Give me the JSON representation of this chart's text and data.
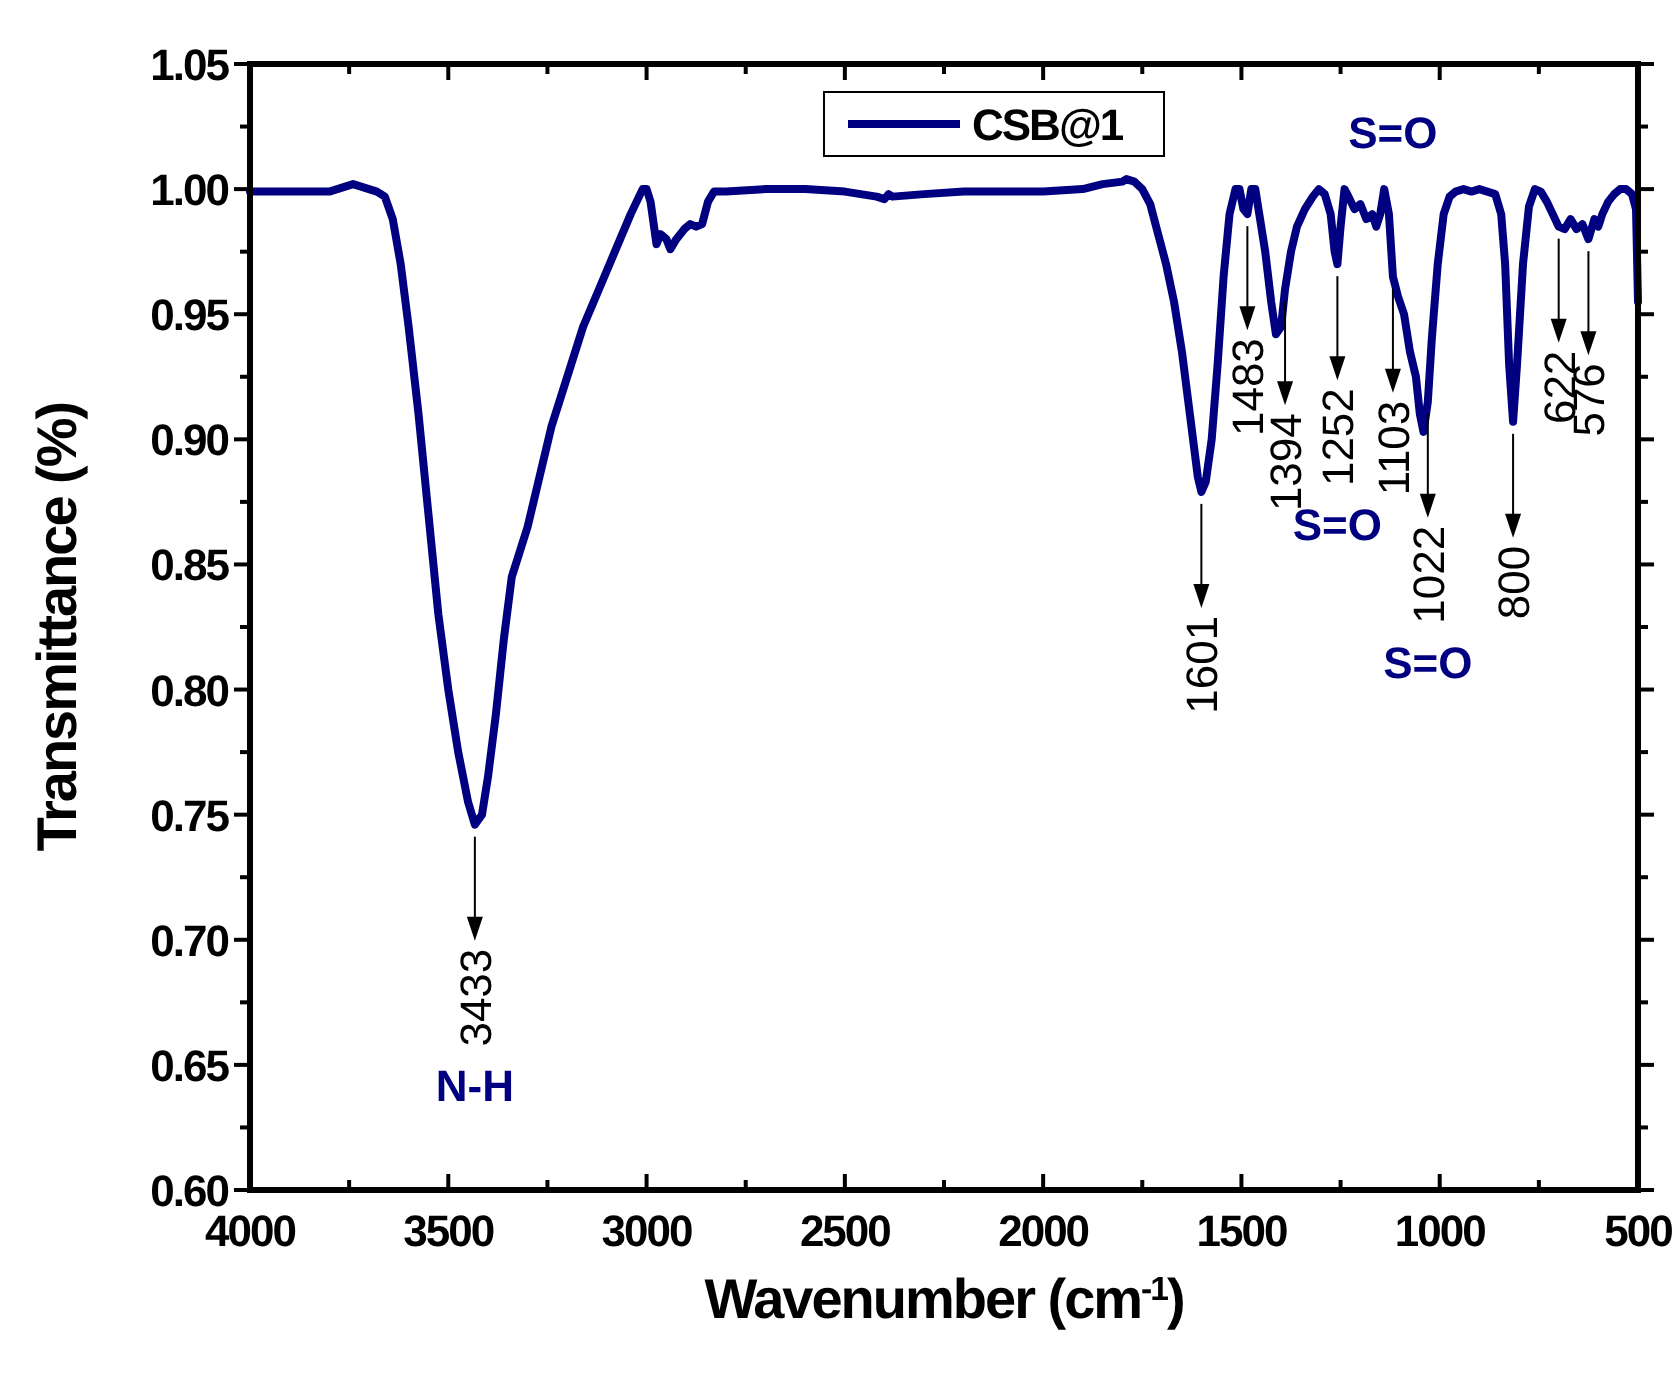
{
  "chart_data": {
    "type": "line",
    "xlabel": "Wavenumber (cm$^{-1}$)",
    "ylabel": "Transmittance (%)",
    "xlim": [
      4000,
      500
    ],
    "xticks": [
      4000,
      {
        "value": 3750,
        "label": null
      },
      3500,
      {
        "value": 3250,
        "label": null
      },
      3000,
      {
        "value": 2750,
        "label": null
      },
      2500,
      {
        "value": 2250,
        "label": null
      },
      2000,
      {
        "value": 1750,
        "label": null
      },
      1500,
      {
        "value": 1250,
        "label": null
      },
      1000,
      {
        "value": 750,
        "label": null
      },
      500
    ],
    "ylim": [
      0.6,
      1.05
    ],
    "yticks": [
      {
        "value": 0.6,
        "label": "0.60"
      },
      {
        "value": 0.625,
        "label": null
      },
      {
        "value": 0.65,
        "label": "0.65"
      },
      {
        "value": 0.675,
        "label": null
      },
      {
        "value": 0.7,
        "label": "0.70"
      },
      {
        "value": 0.725,
        "label": null
      },
      {
        "value": 0.75,
        "label": "0.75"
      },
      {
        "value": 0.775,
        "label": null
      },
      {
        "value": 0.8,
        "label": "0.80"
      },
      {
        "value": 0.825,
        "label": null
      },
      {
        "value": 0.85,
        "label": "0.85"
      },
      {
        "value": 0.875,
        "label": null
      },
      {
        "value": 0.9,
        "label": "0.90"
      },
      {
        "value": 0.925,
        "label": null
      },
      {
        "value": 0.95,
        "label": "0.95"
      },
      {
        "value": 0.975,
        "label": null
      },
      {
        "value": 1.0,
        "label": "1.00"
      },
      {
        "value": 1.025,
        "label": null
      },
      {
        "value": 1.05,
        "label": "1.05"
      }
    ],
    "grid": false,
    "legend": "top",
    "marker": "none",
    "line_style": "solid",
    "series": [
      {
        "name": "CSB@1",
        "color": "#000080",
        "x": [
          4000,
          3900,
          3850,
          3800,
          3760,
          3740,
          3700,
          3680,
          3660,
          3640,
          3620,
          3600,
          3575,
          3550,
          3525,
          3500,
          3475,
          3450,
          3433,
          3415,
          3400,
          3380,
          3360,
          3340,
          3320,
          3300,
          3270,
          3240,
          3200,
          3160,
          3120,
          3080,
          3040,
          3010,
          3000,
          2990,
          2975,
          2965,
          2950,
          2940,
          2925,
          2905,
          2890,
          2875,
          2860,
          2845,
          2830,
          2800,
          2700,
          2600,
          2500,
          2420,
          2400,
          2390,
          2380,
          2300,
          2200,
          2000,
          1900,
          1850,
          1800,
          1790,
          1770,
          1750,
          1730,
          1710,
          1690,
          1670,
          1650,
          1630,
          1610,
          1601,
          1590,
          1575,
          1560,
          1545,
          1530,
          1515,
          1505,
          1495,
          1485,
          1475,
          1465,
          1455,
          1440,
          1425,
          1413,
          1400,
          1390,
          1375,
          1360,
          1340,
          1320,
          1305,
          1290,
          1275,
          1265,
          1258,
          1250,
          1240,
          1230,
          1215,
          1200,
          1185,
          1170,
          1160,
          1150,
          1140,
          1128,
          1118,
          1105,
          1090,
          1075,
          1060,
          1050,
          1041,
          1030,
          1020,
          1005,
          990,
          975,
          960,
          940,
          920,
          900,
          880,
          860,
          845,
          835,
          825,
          815,
          805,
          790,
          775,
          760,
          745,
          730,
          715,
          700,
          685,
          670,
          655,
          640,
          625,
          610,
          600,
          590,
          575,
          560,
          545,
          530,
          515,
          505,
          500
        ],
        "values": [
          0.999,
          0.999,
          0.999,
          0.999,
          1.001,
          1.002,
          1.0,
          0.999,
          0.997,
          0.988,
          0.97,
          0.945,
          0.91,
          0.87,
          0.83,
          0.8,
          0.775,
          0.755,
          0.746,
          0.75,
          0.765,
          0.79,
          0.82,
          0.845,
          0.855,
          0.865,
          0.885,
          0.905,
          0.925,
          0.945,
          0.96,
          0.975,
          0.99,
          1.0,
          1.0,
          0.995,
          0.978,
          0.982,
          0.98,
          0.976,
          0.98,
          0.984,
          0.986,
          0.985,
          0.986,
          0.995,
          0.999,
          0.999,
          1.0,
          1.0,
          0.999,
          0.997,
          0.996,
          0.998,
          0.997,
          0.998,
          0.999,
          0.999,
          1.0,
          1.002,
          1.003,
          1.004,
          1.003,
          1.0,
          0.994,
          0.982,
          0.97,
          0.955,
          0.935,
          0.91,
          0.885,
          0.879,
          0.883,
          0.9,
          0.93,
          0.965,
          0.99,
          1.0,
          1.0,
          0.992,
          0.99,
          1.0,
          1.0,
          0.99,
          0.975,
          0.955,
          0.942,
          0.945,
          0.96,
          0.975,
          0.985,
          0.992,
          0.997,
          1.0,
          0.998,
          0.99,
          0.975,
          0.97,
          0.985,
          1.0,
          0.997,
          0.992,
          0.994,
          0.988,
          0.99,
          0.985,
          0.99,
          1.0,
          0.99,
          0.965,
          0.957,
          0.95,
          0.935,
          0.925,
          0.91,
          0.903,
          0.915,
          0.94,
          0.97,
          0.99,
          0.997,
          0.999,
          1.0,
          0.999,
          1.0,
          0.999,
          0.998,
          0.99,
          0.97,
          0.93,
          0.907,
          0.93,
          0.97,
          0.993,
          1.0,
          0.999,
          0.995,
          0.99,
          0.985,
          0.984,
          0.988,
          0.984,
          0.986,
          0.98,
          0.988,
          0.985,
          0.99,
          0.995,
          0.998,
          1.0,
          1.0,
          0.998,
          0.992,
          0.955
        ]
      }
    ],
    "annotations": [
      {
        "text": "3433",
        "x": 3433,
        "y": 0.746
      },
      "N-H",
      {
        "text": "1601",
        "x": 1601,
        "y": 0.879
      },
      {
        "text": "1483",
        "x": 1485,
        "y": 0.99
      },
      {
        "text": "1394",
        "x": 1390,
        "y": 0.96
      },
      {
        "text": "1252",
        "x": 1258,
        "y": 0.97
      },
      "S=O",
      "S=O",
      {
        "text": "1103",
        "x": 1118,
        "y": 0.965
      },
      {
        "text": "1022",
        "x": 1030,
        "y": 0.915
      },
      "S=O",
      {
        "text": "800",
        "x": 815,
        "y": 0.907
      },
      {
        "text": "622",
        "x": 700,
        "y": 0.985
      },
      {
        "text": "576",
        "x": 625,
        "y": 0.98
      }
    ]
  }
}
